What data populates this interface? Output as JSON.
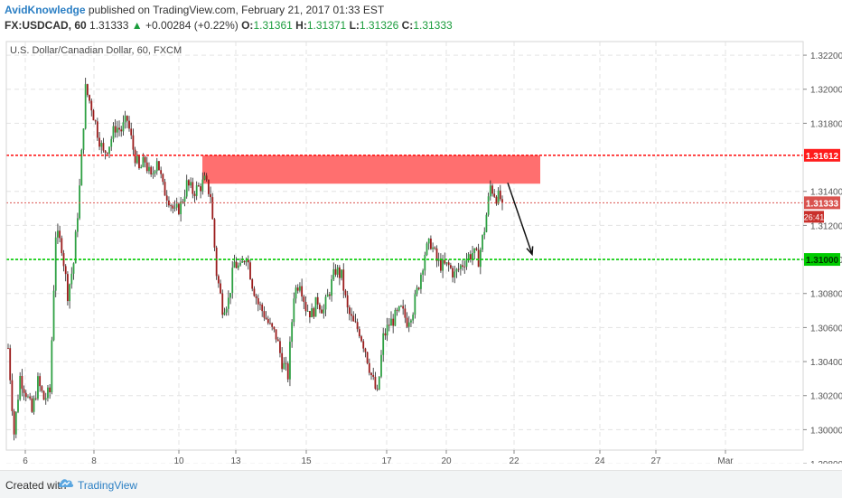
{
  "header": {
    "author": "AvidKnowledge",
    "published_text": "published on TradingView.com, February 21, 2017 01:33 EST",
    "symbol": "FX:USDCAD, 60",
    "last": "1.31333",
    "change_arrow": "▲",
    "change": "+0.00284 (+0.22%)",
    "open_label": "O:",
    "open": "1.31361",
    "high_label": "H:",
    "high": "1.31371",
    "low_label": "L:",
    "low": "1.31326",
    "close_label": "C:",
    "close": "1.31333"
  },
  "footer": {
    "created_with": "Created with",
    "brand": "TradingView"
  },
  "colors": {
    "up_candle": "#2ea043",
    "down_candle": "#9b1c1c",
    "resistance": "#ff1c1c",
    "support": "#00cc00",
    "zone": "#ff6f6f",
    "last_price": "#d9534f",
    "grid": "#e3e3e3"
  },
  "chart_data": {
    "type": "candlestick",
    "title": "U.S. Dollar/Canadian Dollar, 60, FXCM",
    "y_axis": {
      "min": 1.2988,
      "max": 1.3228,
      "ticks": [
        "1.32200",
        "1.32000",
        "1.31800",
        "1.31400",
        "1.31200",
        "1.31000",
        "1.30800",
        "1.30600",
        "1.30400",
        "1.30200",
        "1.30000",
        "1.29800"
      ]
    },
    "x_axis": {
      "ticks": [
        "6",
        "8",
        "10",
        "13",
        "15",
        "17",
        "20",
        "22",
        "24",
        "27",
        "Mar"
      ]
    },
    "levels": [
      {
        "name": "resistance",
        "value": 1.31612,
        "label": "1.31612",
        "style": "dotted"
      },
      {
        "name": "support",
        "value": 1.31,
        "label": "1.31000",
        "style": "dotted"
      },
      {
        "name": "last",
        "value": 1.31333,
        "label": "1.31333",
        "style": "dotted"
      }
    ],
    "countdown_label": "26:41",
    "zone": {
      "from": 1.31445,
      "to": 1.31612,
      "start_day": "10",
      "end_day": "22"
    },
    "projection_arrow": {
      "from": 1.3145,
      "to": 1.3103
    },
    "price_path": [
      1.3048,
      1.2998,
      1.3031,
      1.3022,
      1.301,
      1.3028,
      1.3018,
      1.3022,
      1.3115,
      1.3108,
      1.308,
      1.3098,
      1.3142,
      1.32,
      1.319,
      1.3175,
      1.3162,
      1.3168,
      1.3178,
      1.3176,
      1.3182,
      1.3165,
      1.3152,
      1.3158,
      1.3147,
      1.316,
      1.3142,
      1.3136,
      1.3127,
      1.3132,
      1.3144,
      1.314,
      1.3142,
      1.3146,
      1.3138,
      1.3092,
      1.3072,
      1.3076,
      1.3098,
      1.3094,
      1.3104,
      1.3086,
      1.3074,
      1.3068,
      1.306,
      1.3055,
      1.304,
      1.3032,
      1.308,
      1.3088,
      1.3072,
      1.3068,
      1.3076,
      1.307,
      1.3082,
      1.3094,
      1.309,
      1.307,
      1.3062,
      1.3058,
      1.3047,
      1.3032,
      1.302,
      1.3054,
      1.3062,
      1.3066,
      1.307,
      1.3064,
      1.3071,
      1.3086,
      1.3104,
      1.311,
      1.3099,
      1.3096,
      1.3096,
      1.3091,
      1.3096,
      1.3101,
      1.3104,
      1.31,
      1.3118,
      1.3143,
      1.3137,
      1.3135
    ]
  }
}
